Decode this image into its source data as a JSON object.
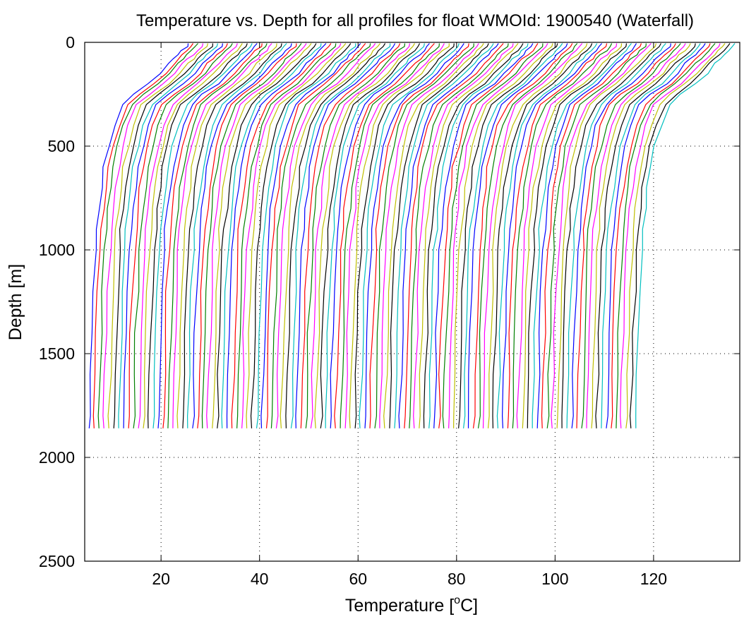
{
  "chart_data": {
    "type": "line",
    "title": "Temperature vs. Depth for all profiles for float WMOId: 1900540 (Waterfall)",
    "xlabel": {
      "prefix": "Temperature [",
      "superscript": "o",
      "suffix": "C]"
    },
    "ylabel": "Depth [m]",
    "xlim": [
      4.5,
      137.5
    ],
    "ylim": [
      0,
      2500
    ],
    "y_reversed": true,
    "grid": true,
    "legend": "none",
    "xticks": [
      20,
      40,
      60,
      80,
      100,
      120
    ],
    "yticks": [
      0,
      500,
      1000,
      1500,
      2000,
      2500
    ],
    "colors": [
      "#0000ff",
      "#ff0000",
      "#008000",
      "#ff00ff",
      "#bfbf00",
      "#000000",
      "#00bfbf"
    ],
    "series_count": 112,
    "series_offset_step": 1.0,
    "first_profile": {
      "depth": [
        5,
        20,
        40,
        60,
        80,
        100,
        150,
        200,
        250,
        300,
        400,
        500,
        600,
        700,
        800,
        900,
        1000,
        1200,
        1400,
        1600,
        1800,
        1860
      ],
      "temperature": [
        25.5,
        25.2,
        24.3,
        23.4,
        22.5,
        21.6,
        19.8,
        17.5,
        14.5,
        12.2,
        10.4,
        9.3,
        8.4,
        7.8,
        7.3,
        6.9,
        6.6,
        6.2,
        5.9,
        5.7,
        5.5,
        5.4
      ]
    }
  }
}
